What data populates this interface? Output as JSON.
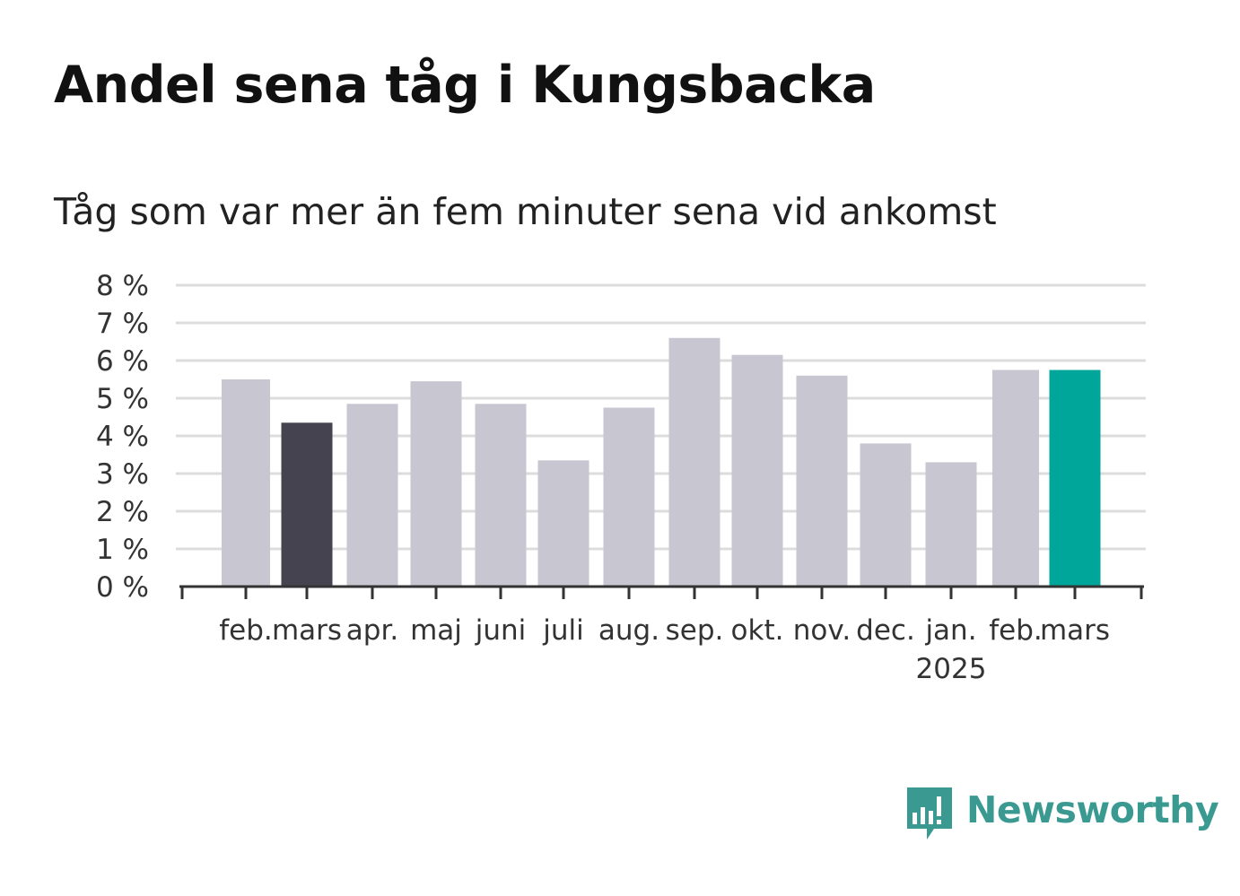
{
  "chart_data": {
    "type": "bar",
    "title": "Andel sena tåg i Kungsbacka",
    "subtitle": "Tåg som var mer än fem minuter sena vid ankomst",
    "categories": [
      "feb.",
      "mars",
      "apr.",
      "maj",
      "juni",
      "juli",
      "aug.",
      "sep.",
      "okt.",
      "nov.",
      "dec.",
      "jan.",
      "feb.",
      "mars"
    ],
    "year_label": "2025",
    "values": [
      5.5,
      4.35,
      4.85,
      5.45,
      4.85,
      3.35,
      4.75,
      6.6,
      6.15,
      5.6,
      3.8,
      3.3,
      5.75,
      5.75
    ],
    "ylim": [
      0,
      8
    ],
    "yticks": [
      "0 %",
      "1 %",
      "2 %",
      "3 %",
      "4 %",
      "5 %",
      "6 %",
      "7 %",
      "8 %"
    ],
    "grid": true,
    "colors": {
      "default": "#c8c6d1",
      "highlight_previous": "#45434f",
      "highlight_current": "#00a69a",
      "grid": "#dcdcdc",
      "axis": "#333333"
    },
    "highlights": {
      "1": "highlight_previous",
      "13": "highlight_current"
    }
  },
  "brand": {
    "name": "Newsworthy",
    "logo_icon": "newsworthy-logo-icon",
    "color": "#3a9a92"
  }
}
